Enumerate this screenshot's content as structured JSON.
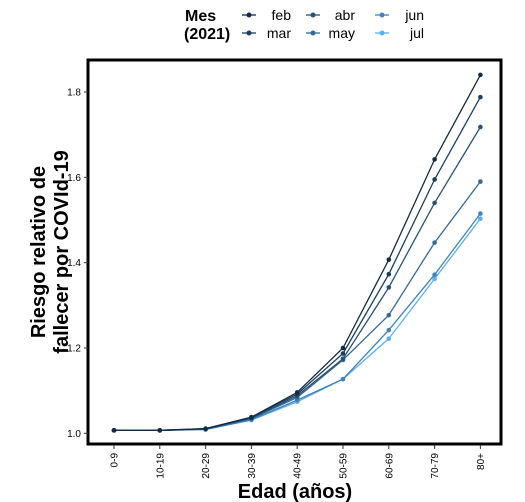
{
  "chart_data": {
    "type": "line",
    "title": "",
    "xlabel": "Edad (años)",
    "ylabel_lines": [
      "Riesgo relativo de",
      "fallecer por COVId-19"
    ],
    "categories": [
      "0-9",
      "10-19",
      "20-29",
      "30-39",
      "40-49",
      "50-59",
      "60-69",
      "70-79",
      "80+"
    ],
    "yticks": [
      1.0,
      1.2,
      1.4,
      1.6,
      1.8
    ],
    "ytick_labels": [
      "1.0",
      "1.2",
      "1.4",
      "1.6",
      "1.8"
    ],
    "ylim": [
      0.975,
      1.875
    ],
    "legend": {
      "title_lines": [
        "Mes",
        "(2021)"
      ],
      "placement": "top"
    },
    "series": [
      {
        "name": "feb",
        "color": "#132B43",
        "values": [
          1.007,
          1.007,
          1.011,
          1.038,
          1.096,
          1.2,
          1.407,
          1.642,
          1.84
        ]
      },
      {
        "name": "mar",
        "color": "#1D3E5C",
        "values": [
          1.007,
          1.007,
          1.011,
          1.037,
          1.092,
          1.187,
          1.373,
          1.595,
          1.788
        ]
      },
      {
        "name": "abr",
        "color": "#275277",
        "values": [
          1.007,
          1.007,
          1.01,
          1.036,
          1.088,
          1.175,
          1.342,
          1.54,
          1.718
        ]
      },
      {
        "name": "may",
        "color": "#346A98",
        "values": [
          1.007,
          1.007,
          1.01,
          1.034,
          1.084,
          1.172,
          1.277,
          1.447,
          1.59
        ]
      },
      {
        "name": "jun",
        "color": "#4283BC",
        "values": [
          1.007,
          1.007,
          1.009,
          1.032,
          1.078,
          1.127,
          1.242,
          1.372,
          1.515
        ]
      },
      {
        "name": "jul",
        "color": "#56B1F7",
        "values": [
          1.007,
          1.007,
          1.009,
          1.031,
          1.074,
          1.127,
          1.222,
          1.362,
          1.503
        ]
      }
    ]
  }
}
